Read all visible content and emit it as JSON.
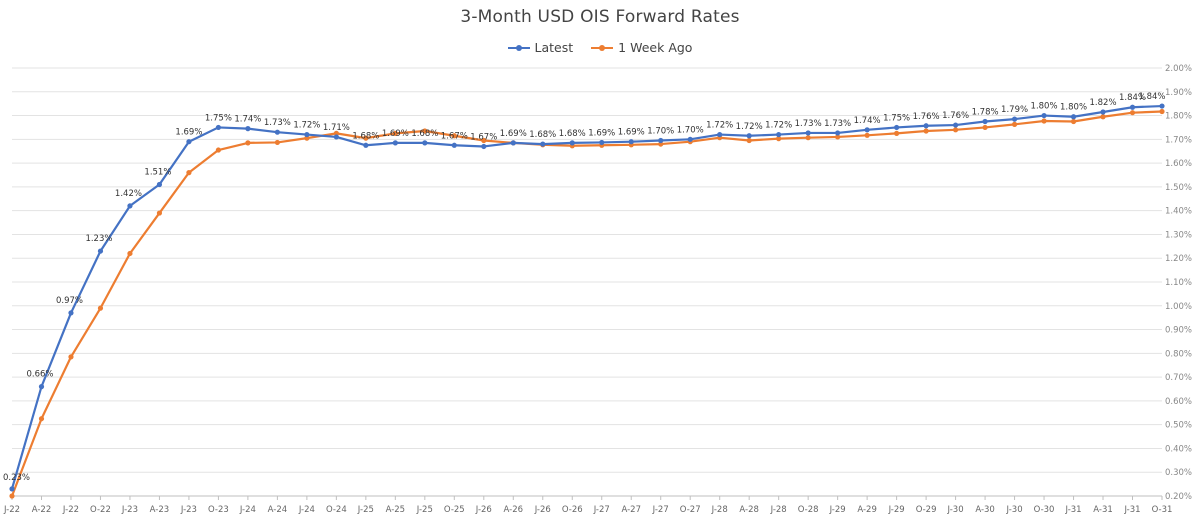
{
  "chart_data": {
    "type": "line",
    "title": "3-Month USD OIS Forward Rates",
    "xlabel": "",
    "ylabel": "",
    "x": [
      "J-22",
      "A-22",
      "J-22",
      "O-22",
      "J-23",
      "A-23",
      "J-23",
      "O-23",
      "J-24",
      "A-24",
      "J-24",
      "O-24",
      "J-25",
      "A-25",
      "J-25",
      "O-25",
      "J-26",
      "A-26",
      "J-26",
      "O-26",
      "J-27",
      "A-27",
      "J-27",
      "O-27",
      "J-28",
      "A-28",
      "J-28",
      "O-28",
      "J-29",
      "A-29",
      "J-29",
      "O-29",
      "J-30",
      "A-30",
      "J-30",
      "O-30",
      "J-31",
      "A-31",
      "J-31",
      "O-31"
    ],
    "y_ticks": [
      "0.20%",
      "0.30%",
      "0.40%",
      "0.50%",
      "0.60%",
      "0.70%",
      "0.80%",
      "0.90%",
      "1.00%",
      "1.10%",
      "1.20%",
      "1.30%",
      "1.40%",
      "1.50%",
      "1.60%",
      "1.70%",
      "1.80%",
      "1.90%",
      "2.00%"
    ],
    "ylim": [
      0.2,
      2.0
    ],
    "y_axis_side": "right",
    "grid": true,
    "legend_position": "top-center",
    "series": [
      {
        "name": "Latest",
        "color": "#4472C4",
        "values": [
          0.23,
          0.66,
          0.97,
          1.23,
          1.42,
          1.51,
          1.69,
          1.75,
          1.745,
          1.73,
          1.72,
          1.71,
          1.675,
          1.685,
          1.685,
          1.675,
          1.67,
          1.685,
          1.68,
          1.685,
          1.687,
          1.69,
          1.695,
          1.7,
          1.72,
          1.715,
          1.72,
          1.727,
          1.727,
          1.74,
          1.75,
          1.757,
          1.76,
          1.775,
          1.785,
          1.8,
          1.795,
          1.815,
          1.835,
          1.84
        ],
        "labels": [
          "0.23%",
          "0.66%",
          "0.97%",
          "1.23%",
          "1.42%",
          "1.51%",
          "1.69%",
          "1.75%",
          "1.74%",
          "1.73%",
          "1.72%",
          "1.71%",
          "1.68%",
          "1.69%",
          "1.68%",
          "1.67%",
          "1.67%",
          "1.69%",
          "1.68%",
          "1.68%",
          "1.69%",
          "1.69%",
          "1.70%",
          "1.70%",
          "1.72%",
          "1.72%",
          "1.72%",
          "1.73%",
          "1.73%",
          "1.74%",
          "1.75%",
          "1.76%",
          "1.76%",
          "1.78%",
          "1.79%",
          "1.80%",
          "1.80%",
          "1.82%",
          "1.84%",
          "1.84%"
        ]
      },
      {
        "name": "1 Week Ago",
        "color": "#ED7D31",
        "values": [
          0.2,
          0.525,
          0.785,
          0.99,
          1.22,
          1.39,
          1.56,
          1.655,
          1.685,
          1.687,
          1.705,
          1.725,
          1.705,
          1.725,
          1.735,
          1.715,
          1.695,
          1.685,
          1.677,
          1.673,
          1.675,
          1.677,
          1.68,
          1.69,
          1.707,
          1.695,
          1.703,
          1.707,
          1.71,
          1.717,
          1.725,
          1.735,
          1.74,
          1.75,
          1.763,
          1.777,
          1.775,
          1.795,
          1.812,
          1.817
        ]
      }
    ]
  }
}
